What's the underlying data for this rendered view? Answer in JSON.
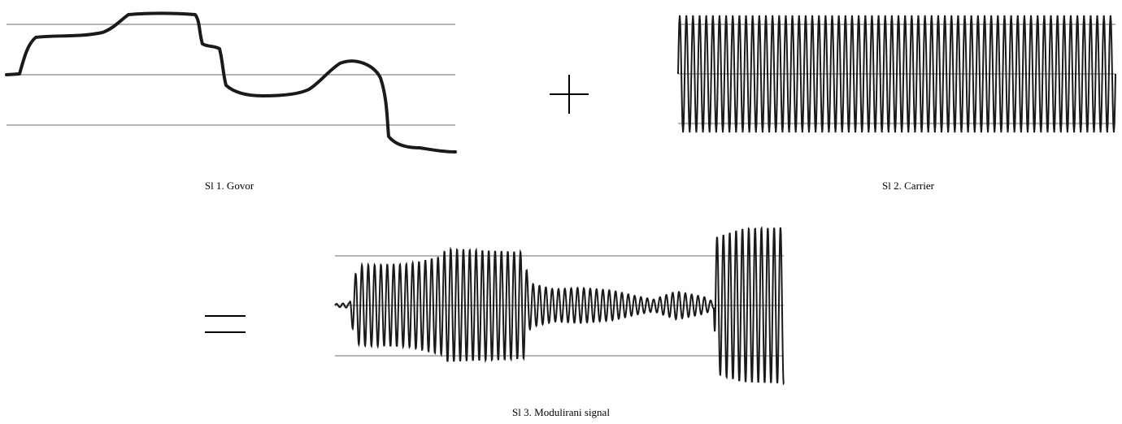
{
  "figure": {
    "captions": {
      "speech": "Sl 1. Govor",
      "carrier": "Sl 2. Carrier",
      "modulated": "Sl 3. Modulirani signal"
    },
    "operators": {
      "plus": "plus-sign",
      "equals": "equals-sign"
    },
    "colors": {
      "trace": "#1a1a1a",
      "gridline": "#8a8a8a",
      "background": "#ffffff"
    },
    "signals": {
      "speech_envelope_levels": [
        0.0,
        0.88,
        0.92,
        1.0,
        1.05,
        1.02,
        0.7,
        0.62,
        -0.22,
        -0.3,
        -0.28,
        -0.12,
        0.1,
        0.06,
        -0.9,
        -1.05,
        -1.2
      ],
      "carrier_cycles": 66,
      "modulated_amplitude_profile": [
        0.03,
        0.72,
        0.8,
        0.9,
        1.0,
        1.0,
        0.4,
        0.35,
        0.3,
        0.12,
        0.1,
        1.45,
        1.55
      ]
    }
  }
}
